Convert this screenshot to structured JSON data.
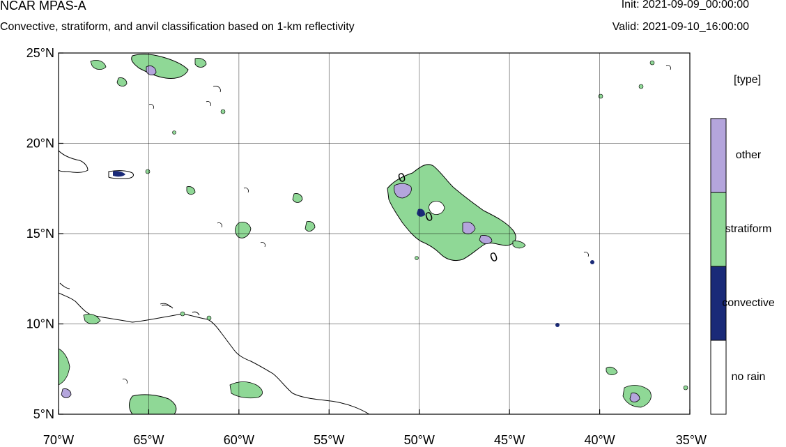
{
  "header": {
    "title": "NCAR MPAS-A",
    "subtitle": "Convective, stratiform, and anvil classification based on 1-km reflectivity",
    "init": "Init: 2021-09-09_00:00:00",
    "valid": "Valid: 2021-09-10_16:00:00"
  },
  "map": {
    "lon_range": [
      -70,
      -35
    ],
    "lat_range": [
      5,
      25
    ],
    "lat_ticks": [
      {
        "value": 25,
        "label": "25°N"
      },
      {
        "value": 20,
        "label": "20°N"
      },
      {
        "value": 15,
        "label": "15°N"
      },
      {
        "value": 10,
        "label": "10°N"
      },
      {
        "value": 5,
        "label": "5°N"
      }
    ],
    "lon_ticks": [
      {
        "value": -70,
        "label": "70°W"
      },
      {
        "value": -65,
        "label": "65°W"
      },
      {
        "value": -60,
        "label": "60°W"
      },
      {
        "value": -55,
        "label": "55°W"
      },
      {
        "value": -50,
        "label": "50°W"
      },
      {
        "value": -45,
        "label": "45°W"
      },
      {
        "value": -40,
        "label": "40°W"
      },
      {
        "value": -35,
        "label": "35°W"
      }
    ],
    "grid": true,
    "contour_labels": [
      "0",
      "0",
      "0"
    ]
  },
  "legend": {
    "title": "[type]",
    "items": [
      {
        "label": "other",
        "color": "#b4a5dc"
      },
      {
        "label": "stratiform",
        "color": "#8fd896"
      },
      {
        "label": "convective",
        "color": "#1a2a78"
      },
      {
        "label": "no rain",
        "color": "#ffffff"
      }
    ]
  }
}
